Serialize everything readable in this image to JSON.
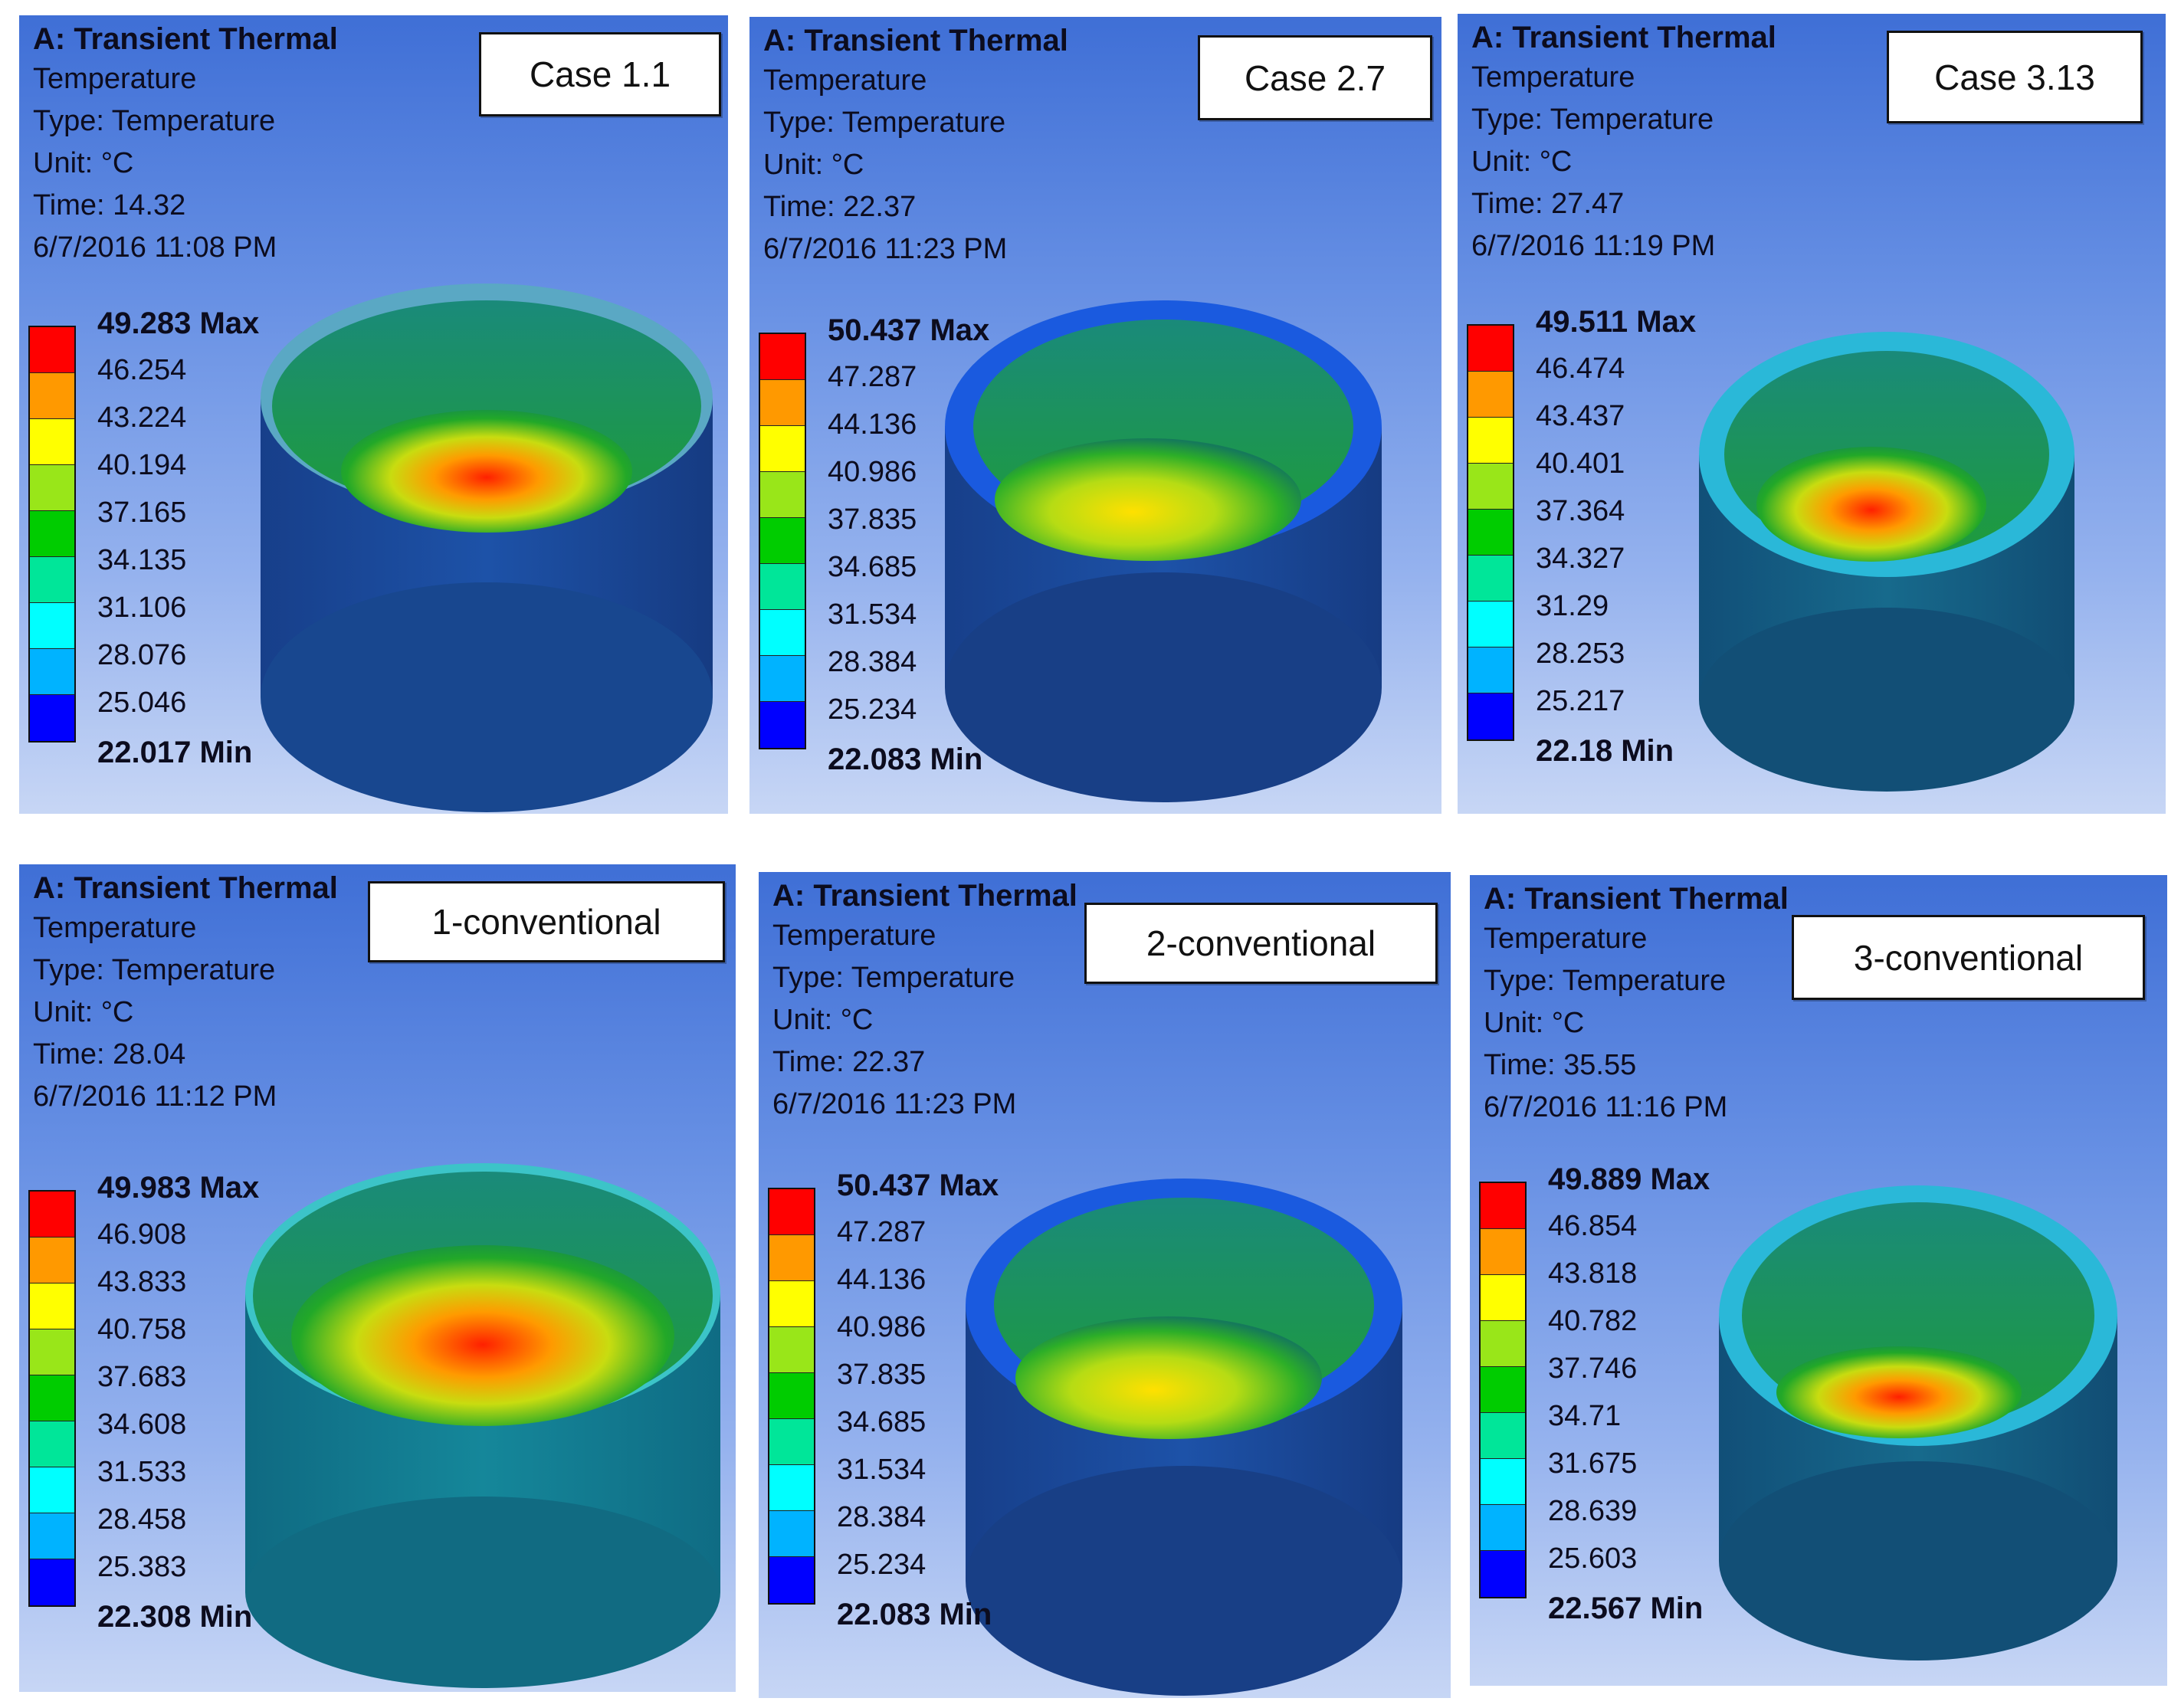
{
  "legend_colors": [
    "#ff0000",
    "#ff9900",
    "#ffff00",
    "#99e619",
    "#00cc00",
    "#00e699",
    "#00ffff",
    "#00b3ff",
    "#0000ff"
  ],
  "panels": [
    {
      "header": {
        "title": "A: Transient Thermal",
        "quantity": "Temperature",
        "type": "Type: Temperature",
        "unit": "Unit: °C",
        "time": "Time: 14.32",
        "date": "6/7/2016 11:08 PM"
      },
      "case_label": "Case 1.1",
      "legend": {
        "max": "49.283 Max",
        "ticks": [
          "46.254",
          "43.224",
          "40.194",
          "37.165",
          "34.135",
          "31.106",
          "28.076",
          "25.046"
        ],
        "min": "22.017 Min"
      }
    },
    {
      "header": {
        "title": "A: Transient Thermal",
        "quantity": "Temperature",
        "type": "Type: Temperature",
        "unit": "Unit: °C",
        "time": "Time: 22.37",
        "date": "6/7/2016 11:23 PM"
      },
      "case_label": "Case 2.7",
      "legend": {
        "max": "50.437 Max",
        "ticks": [
          "47.287",
          "44.136",
          "40.986",
          "37.835",
          "34.685",
          "31.534",
          "28.384",
          "25.234"
        ],
        "min": "22.083 Min"
      }
    },
    {
      "header": {
        "title": "A: Transient Thermal",
        "quantity": "Temperature",
        "type": "Type: Temperature",
        "unit": "Unit: °C",
        "time": "Time: 27.47",
        "date": "6/7/2016 11:19 PM"
      },
      "case_label": "Case 3.13",
      "legend": {
        "max": "49.511 Max",
        "ticks": [
          "46.474",
          "43.437",
          "40.401",
          "37.364",
          "34.327",
          "31.29",
          "28.253",
          "25.217"
        ],
        "min": "22.18 Min"
      }
    },
    {
      "header": {
        "title": "A: Transient Thermal",
        "quantity": "Temperature",
        "type": "Type: Temperature",
        "unit": "Unit: °C",
        "time": "Time: 28.04",
        "date": "6/7/2016 11:12 PM"
      },
      "case_label": "1-conventional",
      "legend": {
        "max": "49.983 Max",
        "ticks": [
          "46.908",
          "43.833",
          "40.758",
          "37.683",
          "34.608",
          "31.533",
          "28.458",
          "25.383"
        ],
        "min": "22.308 Min"
      }
    },
    {
      "header": {
        "title": "A: Transient Thermal",
        "quantity": "Temperature",
        "type": "Type: Temperature",
        "unit": "Unit: °C",
        "time": "Time: 22.37",
        "date": "6/7/2016 11:23 PM"
      },
      "case_label": "2-conventional",
      "legend": {
        "max": "50.437 Max",
        "ticks": [
          "47.287",
          "44.136",
          "40.986",
          "37.835",
          "34.685",
          "31.534",
          "28.384",
          "25.234"
        ],
        "min": "22.083 Min"
      }
    },
    {
      "header": {
        "title": "A: Transient Thermal",
        "quantity": "Temperature",
        "type": "Type: Temperature",
        "unit": "Unit: °C",
        "time": "Time: 35.55",
        "date": "6/7/2016 11:16 PM"
      },
      "case_label": "3-conventional",
      "legend": {
        "max": "49.889 Max",
        "ticks": [
          "46.854",
          "43.818",
          "40.782",
          "37.746",
          "34.71",
          "31.675",
          "28.639",
          "25.603"
        ],
        "min": "22.567 Min"
      }
    }
  ]
}
